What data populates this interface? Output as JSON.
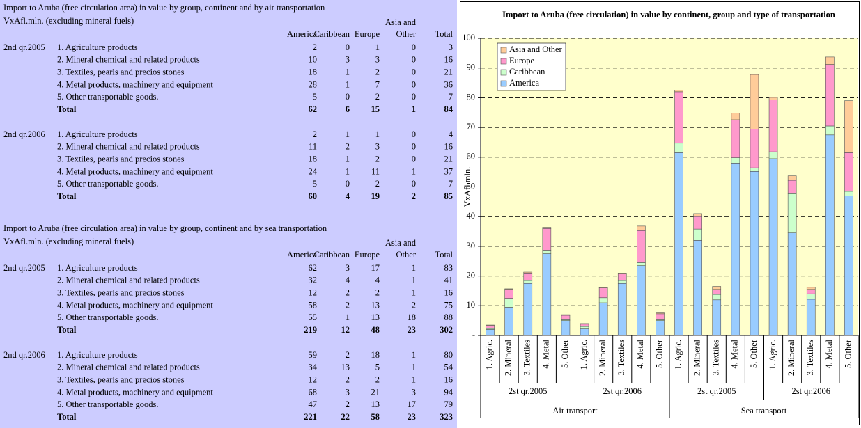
{
  "tables": [
    {
      "title": "Import to Aruba (free circulation area) in value by group, continent and by air transportation",
      "unit": "VxAfl.mln. (excluding mineral fuels)",
      "columns": [
        "America",
        "Caribbean",
        "Europe",
        [
          "Asia and",
          "Other"
        ],
        "Total"
      ],
      "blocks": [
        {
          "period": "2nd qr.2005",
          "rows": [
            {
              "label": "1. Agriculture products",
              "values": [
                2,
                0,
                1,
                0,
                3
              ]
            },
            {
              "label": "2. Mineral chemical and related products",
              "values": [
                10,
                3,
                3,
                0,
                16
              ]
            },
            {
              "label": "3. Textiles, pearls and precios stones",
              "values": [
                18,
                1,
                2,
                0,
                21
              ]
            },
            {
              "label": "4. Metal products, machinery and equipment",
              "values": [
                28,
                1,
                7,
                0,
                36
              ]
            },
            {
              "label": "5. Other transportable goods.",
              "values": [
                5,
                0,
                2,
                0,
                7
              ]
            },
            {
              "label": "Total",
              "values": [
                62,
                6,
                15,
                1,
                84
              ]
            }
          ]
        },
        {
          "period": "2nd qr.2006",
          "rows": [
            {
              "label": "1. Agriculture products",
              "values": [
                2,
                1,
                1,
                0,
                4
              ]
            },
            {
              "label": "2. Mineral chemical and related products",
              "values": [
                11,
                2,
                3,
                0,
                16
              ]
            },
            {
              "label": "3. Textiles, pearls and precios stones",
              "values": [
                18,
                1,
                2,
                0,
                21
              ]
            },
            {
              "label": "4. Metal products, machinery and equipment",
              "values": [
                24,
                1,
                11,
                1,
                37
              ]
            },
            {
              "label": "5. Other transportable goods.",
              "values": [
                5,
                0,
                2,
                0,
                7
              ]
            },
            {
              "label": "Total",
              "values": [
                60,
                4,
                19,
                2,
                85
              ]
            }
          ]
        }
      ]
    },
    {
      "title": "Import to Aruba (free circulation area) in value by group, continent and by sea transportation",
      "unit": "VxAfl.mln. (excluding mineral fuels)",
      "columns": [
        "America",
        "Caribbean",
        "Europe",
        [
          "Asia and",
          "Other"
        ],
        "Total"
      ],
      "blocks": [
        {
          "period": "2nd qr.2005",
          "rows": [
            {
              "label": "1. Agriculture products",
              "values": [
                62,
                3,
                17,
                1,
                83
              ]
            },
            {
              "label": "2. Mineral chemical and related products",
              "values": [
                32,
                4,
                4,
                1,
                41
              ]
            },
            {
              "label": "3. Textiles, pearls and precios stones",
              "values": [
                12,
                2,
                2,
                1,
                16
              ]
            },
            {
              "label": "4. Metal products, machinery and equipment",
              "values": [
                58,
                2,
                13,
                2,
                75
              ]
            },
            {
              "label": "5. Other transportable goods.",
              "values": [
                55,
                1,
                13,
                18,
                88
              ]
            },
            {
              "label": "Total",
              "values": [
                219,
                12,
                48,
                23,
                302
              ]
            }
          ]
        },
        {
          "period": "2nd qr.2006",
          "rows": [
            {
              "label": "1. Agriculture products",
              "values": [
                59,
                2,
                18,
                1,
                80
              ]
            },
            {
              "label": "2. Mineral chemical and related products",
              "values": [
                34,
                13,
                5,
                1,
                54
              ]
            },
            {
              "label": "3. Textiles, pearls and precios stones",
              "values": [
                12,
                2,
                2,
                1,
                16
              ]
            },
            {
              "label": "4. Metal products, machinery and equipment",
              "values": [
                68,
                3,
                21,
                3,
                94
              ]
            },
            {
              "label": "5. Other transportable goods.",
              "values": [
                47,
                2,
                13,
                17,
                79
              ]
            },
            {
              "label": "Total",
              "values": [
                221,
                22,
                58,
                23,
                323
              ]
            }
          ]
        }
      ]
    }
  ],
  "chart_data": {
    "type": "stacked_bar",
    "title": "Import to Aruba (free circulation) in value by continent, group and type of transportation",
    "y_label": "VxAfl.mln.",
    "categories": [
      "1. Agric.",
      "2. Mineral",
      "3. Textiles",
      "4. Metal",
      "5. Other",
      "1. Agric.",
      "2. Mineral",
      "3. Textiles",
      "4. Metal",
      "5. Other",
      "1. Agric.",
      "2. Mineral",
      "3. Textiles",
      "4. Metal",
      "5. Other",
      "1. Agric.",
      "2. Mineral",
      "3. Textiles",
      "4. Metal",
      "5. Other"
    ],
    "groups": [
      "2st qr.2005",
      "2st qr.2006",
      "2st qr.2005",
      "2st qr.2006"
    ],
    "supergroups": [
      "Air transport",
      "Sea transport"
    ],
    "series": [
      {
        "name": "America",
        "color": "#99ccff",
        "values": [
          2,
          9.5,
          17.5,
          27.5,
          5,
          2.2,
          11,
          17.5,
          23.5,
          5,
          61.5,
          32,
          12,
          58,
          55.2,
          59.5,
          34.5,
          12.2,
          67.5,
          47
        ]
      },
      {
        "name": "Caribbean",
        "color": "#ccffcc",
        "values": [
          0.3,
          3,
          1,
          1.2,
          0.3,
          0.8,
          1.7,
          1,
          1,
          0.3,
          3.2,
          3.8,
          1.8,
          1.8,
          1.2,
          2.3,
          13.2,
          1.8,
          3,
          1.5
        ]
      },
      {
        "name": "Europe",
        "color": "#ff99cc",
        "values": [
          1,
          3,
          2.5,
          7.3,
          1.5,
          0.8,
          3.3,
          2.3,
          10.8,
          2,
          17.3,
          4.2,
          1.7,
          12.8,
          13,
          17.5,
          4.5,
          1.5,
          20.7,
          13
        ]
      },
      {
        "name": "Asia and Other",
        "color": "#ffcc99",
        "values": [
          0.2,
          0.2,
          0.3,
          0.4,
          0.2,
          0.2,
          0.2,
          0.2,
          1.5,
          0.3,
          0.5,
          1,
          1,
          2.2,
          18.4,
          0.8,
          1.5,
          0.7,
          2.5,
          17.5
        ]
      }
    ],
    "ylim": [
      0,
      100
    ],
    "yticks": [
      {
        "value": 0,
        "label": "-"
      },
      10,
      20,
      30,
      40,
      50,
      60,
      70,
      80,
      90,
      100
    ],
    "grid": true,
    "legend": "top-left",
    "plot_background": "#ffffcc"
  }
}
